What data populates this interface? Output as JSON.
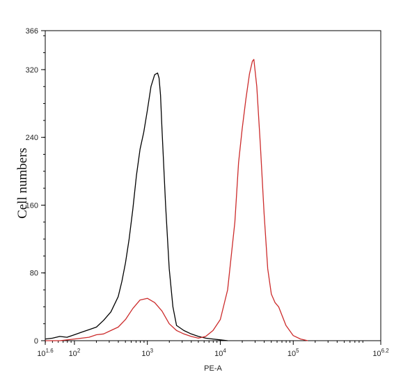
{
  "chart_data": {
    "type": "line",
    "title": "",
    "xlabel": "PE-A",
    "ylabel": "Cell numbers",
    "x_scale": "log",
    "xlim": [
      39.8,
      1584893
    ],
    "ylim": [
      0,
      366
    ],
    "x_ticks": [
      {
        "base": "10",
        "exp": "1.6",
        "value": 39.8
      },
      {
        "base": "10",
        "exp": "2",
        "value": 100
      },
      {
        "base": "10",
        "exp": "3",
        "value": 1000
      },
      {
        "base": "10",
        "exp": "4",
        "value": 10000
      },
      {
        "base": "10",
        "exp": "5",
        "value": 100000
      },
      {
        "base": "10",
        "exp": "6.2",
        "value": 1584893
      }
    ],
    "y_ticks": [
      {
        "label": "0",
        "value": 0
      },
      {
        "label": "80",
        "value": 80
      },
      {
        "label": "160",
        "value": 160
      },
      {
        "label": "240",
        "value": 240
      },
      {
        "label": "320",
        "value": 320
      },
      {
        "label": "366",
        "value": 366
      }
    ],
    "grid": false,
    "series": [
      {
        "color": "#000000",
        "x": [
          40,
          50,
          63,
          79,
          100,
          126,
          158,
          200,
          251,
          316,
          398,
          447,
          501,
          562,
          631,
          708,
          794,
          891,
          1000,
          1122,
          1259,
          1380,
          1445,
          1514,
          1585,
          1778,
          1995,
          2239,
          2512,
          3162,
          3981,
          5012,
          6310,
          7943,
          10000,
          12589
        ],
        "y": [
          2,
          3,
          5,
          4,
          7,
          10,
          13,
          16,
          24,
          34,
          52,
          70,
          92,
          120,
          155,
          195,
          226,
          246,
          272,
          300,
          314,
          316,
          310,
          290,
          250,
          160,
          85,
          40,
          18,
          12,
          8,
          5,
          3,
          2,
          1,
          0
        ]
      },
      {
        "color": "#cc2b2b",
        "x": [
          40,
          63,
          100,
          158,
          200,
          251,
          316,
          398,
          501,
          631,
          794,
          1000,
          1259,
          1585,
          1995,
          2512,
          3162,
          3981,
          5012,
          6310,
          7943,
          10000,
          12589,
          15849,
          17783,
          19953,
          22387,
          25119,
          27542,
          28840,
          31623,
          35481,
          39811,
          44668,
          50119,
          56234,
          63096,
          79433,
          100000,
          125893,
          158489
        ],
        "y": [
          0,
          0,
          2,
          4,
          7,
          8,
          12,
          16,
          25,
          38,
          48,
          50,
          45,
          35,
          20,
          12,
          8,
          5,
          3,
          5,
          12,
          25,
          60,
          140,
          210,
          250,
          285,
          315,
          330,
          332,
          300,
          230,
          150,
          85,
          55,
          45,
          40,
          18,
          6,
          2,
          0
        ]
      }
    ]
  }
}
